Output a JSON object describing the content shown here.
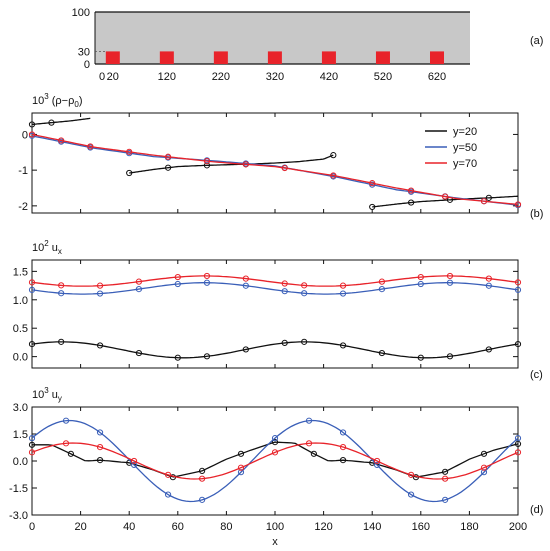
{
  "colors": {
    "y20": "#111111",
    "y50": "#3a5fb8",
    "y70": "#e8232a",
    "block": "#e8232a",
    "channel": "#c8c8c8"
  },
  "chart_data": [
    {
      "type": "other",
      "panel_label": "(a)",
      "y_ticks": [
        "100",
        "30",
        "0"
      ],
      "x_ticks": [
        "0",
        "20",
        "120",
        "220",
        "320",
        "420",
        "520",
        "620"
      ],
      "block_centers": [
        20,
        120,
        220,
        320,
        420,
        520,
        620
      ],
      "block_height": 30,
      "channel_height": 100
    },
    {
      "type": "line",
      "panel_label": "(b)",
      "ylabel_prefix": "10",
      "ylabel_exp": "3",
      "ylabel_main": " (ρ−ρ",
      "ylabel_sub": "0",
      "ylabel_end": ")",
      "ylim": [
        -2.2,
        0.6
      ],
      "yticks": [
        "0",
        "-1",
        "-2"
      ],
      "series": [
        {
          "name": "y=20",
          "color_key": "y20",
          "segments": [
            {
              "x": [
                0,
                8,
                16,
                24
              ],
              "y": [
                0.28,
                0.33,
                0.38,
                0.45
              ],
              "markers": [
                0,
                8
              ]
            },
            {
              "x": [
                40,
                50,
                60,
                70,
                80,
                90,
                100,
                110,
                120,
                124
              ],
              "y": [
                -1.08,
                -0.98,
                -0.9,
                -0.87,
                -0.85,
                -0.83,
                -0.8,
                -0.76,
                -0.69,
                -0.58
              ],
              "markers": [
                40,
                56,
                72,
                88,
                124
              ]
            },
            {
              "x": [
                140,
                150,
                160,
                170,
                180,
                190,
                200
              ],
              "y": [
                -2.03,
                -1.95,
                -1.88,
                -1.84,
                -1.8,
                -1.77,
                -1.73
              ],
              "markers": [
                140,
                156,
                172,
                188
              ]
            }
          ]
        },
        {
          "name": "y=50",
          "color_key": "y50",
          "segments": [
            {
              "x": [
                0,
                25,
                50,
                75,
                100,
                125,
                150,
                175,
                200
              ],
              "y": [
                -0.04,
                -0.38,
                -0.62,
                -0.74,
                -0.88,
                -1.19,
                -1.55,
                -1.78,
                -1.98
              ],
              "markers": [
                0,
                12,
                24,
                40,
                56,
                72,
                88,
                104,
                124,
                140,
                156,
                170,
                186,
                200
              ]
            }
          ]
        },
        {
          "name": "y=70",
          "color_key": "y70",
          "segments": [
            {
              "x": [
                0,
                25,
                50,
                75,
                100,
                125,
                150,
                175,
                200
              ],
              "y": [
                0.0,
                -0.35,
                -0.58,
                -0.77,
                -0.9,
                -1.16,
                -1.5,
                -1.8,
                -1.96
              ],
              "markers": [
                0,
                12,
                24,
                40,
                56,
                72,
                88,
                104,
                124,
                140,
                156,
                170,
                186,
                200
              ]
            }
          ]
        }
      ]
    },
    {
      "type": "line",
      "panel_label": "(c)",
      "ylabel_prefix": "10",
      "ylabel_exp": "2",
      "ylabel_main": " u",
      "ylabel_sub": "x",
      "ylabel_end": "",
      "ylim": [
        -0.2,
        1.7
      ],
      "yticks": [
        "1.5",
        "1.0",
        "0.5",
        "0.0"
      ],
      "series": [
        {
          "name": "y=20",
          "color_key": "y20",
          "fn": {
            "base": 0.12,
            "amp": 0.14,
            "phase": 0.8
          },
          "segments": [
            {
              "markers": [
                0,
                12,
                28,
                44,
                60,
                72,
                88,
                104,
                112,
                128,
                144,
                160,
                172,
                188,
                200
              ]
            }
          ]
        },
        {
          "name": "y=50",
          "color_key": "y50",
          "fn": {
            "base": 1.2,
            "amp": 0.1,
            "phase": 3.4
          },
          "segments": [
            {
              "markers": [
                0,
                12,
                28,
                44,
                60,
                72,
                88,
                104,
                112,
                128,
                144,
                160,
                172,
                188,
                200
              ]
            }
          ]
        },
        {
          "name": "y=70",
          "color_key": "y70",
          "fn": {
            "base": 1.33,
            "amp": 0.09,
            "phase": 3.4
          },
          "segments": [
            {
              "markers": [
                0,
                12,
                28,
                44,
                60,
                72,
                88,
                104,
                112,
                128,
                144,
                160,
                172,
                188,
                200
              ]
            }
          ]
        }
      ]
    },
    {
      "type": "line",
      "panel_label": "(d)",
      "ylabel_prefix": "10",
      "ylabel_exp": "3",
      "ylabel_main": " u",
      "ylabel_sub": "y",
      "ylabel_end": "",
      "ylim": [
        -3.0,
        3.0
      ],
      "yticks": [
        "3.0",
        "1.5",
        "0.0",
        "-1.5",
        "-3.0"
      ],
      "x_ticks": [
        "0",
        "20",
        "40",
        "60",
        "80",
        "100",
        "120",
        "140",
        "160",
        "180",
        "200"
      ],
      "xlabel": "x",
      "series": [
        {
          "name": "y=20",
          "color_key": "y20",
          "segments": [
            {
              "x": [
                0,
                8,
                16,
                22,
                28,
                40,
                50,
                58,
                70,
                80,
                90,
                100,
                108,
                116,
                122,
                128,
                140,
                150,
                158,
                170,
                180,
                190,
                200
              ],
              "y": [
                0.9,
                0.9,
                0.4,
                0.0,
                0.05,
                -0.1,
                -0.5,
                -0.9,
                -0.55,
                0.1,
                0.6,
                1.05,
                1.0,
                0.4,
                0.0,
                0.05,
                -0.1,
                -0.5,
                -0.9,
                -0.6,
                0.1,
                0.6,
                0.95
              ],
              "markers": [
                0,
                16,
                28,
                40,
                58,
                70,
                86,
                100,
                116,
                128,
                140,
                158,
                170,
                186,
                200
              ]
            }
          ]
        },
        {
          "name": "y=50",
          "color_key": "y50",
          "fn": {
            "base": 0.0,
            "amp": 2.25,
            "phase": 0.6
          },
          "segments": [
            {
              "markers": [
                0,
                14,
                28,
                42,
                56,
                70,
                86,
                100,
                114,
                128,
                142,
                156,
                170,
                186,
                200
              ]
            }
          ]
        },
        {
          "name": "y=70",
          "color_key": "y70",
          "fn": {
            "base": 0.0,
            "amp": 1.0,
            "phase": 0.5
          },
          "segments": [
            {
              "markers": [
                0,
                14,
                28,
                42,
                56,
                70,
                86,
                100,
                114,
                128,
                142,
                156,
                170,
                186,
                200
              ]
            }
          ]
        }
      ]
    }
  ]
}
